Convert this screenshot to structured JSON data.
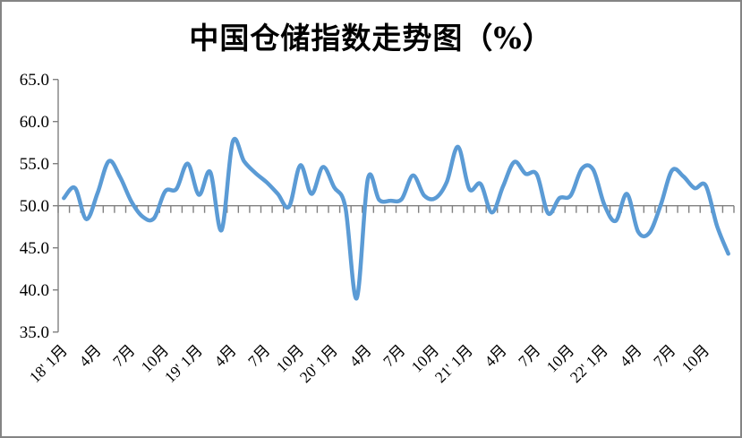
{
  "chart_data": {
    "type": "line",
    "title": "中国仓储指数走势图（%）",
    "xlabel": "",
    "ylabel": "",
    "ylim": [
      35.0,
      65.0
    ],
    "ytick_step": 5.0,
    "y_tick_labels": [
      "65.0",
      "60.0",
      "55.0",
      "50.0",
      "45.0",
      "40.0",
      "35.0"
    ],
    "x_axis_crosses_at": 50.0,
    "grid": false,
    "legend": "none",
    "line_color": "#5b9bd5",
    "axis_color": "#808080",
    "x_tick_label_rotation_deg": 45,
    "x_tick_positions": [
      0,
      3,
      6,
      9,
      12,
      15,
      18,
      21,
      24,
      27,
      30,
      33,
      36,
      39,
      42,
      45,
      48,
      51,
      54,
      57
    ],
    "x_tick_labels": [
      "18' 1月",
      "4月",
      "7月",
      "10月",
      "19' 1月",
      "4月",
      "7月",
      "10月",
      "20' 1月",
      "4月",
      "7月",
      "10月",
      "21' 1月",
      "4月",
      "7月",
      "10月",
      "22' 1月",
      "4月",
      "7月",
      "10月"
    ],
    "categories": [
      "2018-01",
      "2018-02",
      "2018-03",
      "2018-04",
      "2018-05",
      "2018-06",
      "2018-07",
      "2018-08",
      "2018-09",
      "2018-10",
      "2018-11",
      "2018-12",
      "2019-01",
      "2019-02",
      "2019-03",
      "2019-04",
      "2019-05",
      "2019-06",
      "2019-07",
      "2019-08",
      "2019-09",
      "2019-10",
      "2019-11",
      "2019-12",
      "2020-01",
      "2020-02",
      "2020-03",
      "2020-04",
      "2020-05",
      "2020-06",
      "2020-07",
      "2020-08",
      "2020-09",
      "2020-10",
      "2020-11",
      "2020-12",
      "2021-01",
      "2021-02",
      "2021-03",
      "2021-04",
      "2021-05",
      "2021-06",
      "2021-07",
      "2021-08",
      "2021-09",
      "2021-10",
      "2021-11",
      "2021-12",
      "2022-01",
      "2022-02",
      "2022-03",
      "2022-04",
      "2022-05",
      "2022-06",
      "2022-07",
      "2022-08",
      "2022-09",
      "2022-10",
      "2022-11",
      "2022-12"
    ],
    "series": [
      {
        "name": "中国仓储指数",
        "smooth": true,
        "values": [
          50.9,
          52.1,
          48.4,
          51.5,
          55.3,
          53.4,
          50.5,
          48.7,
          48.5,
          51.7,
          52.0,
          55.0,
          51.3,
          54.0,
          47.1,
          57.6,
          55.3,
          53.9,
          52.8,
          51.4,
          49.9,
          54.8,
          51.4,
          54.6,
          52.2,
          49.8,
          39.0,
          53.2,
          50.7,
          50.6,
          50.8,
          53.6,
          51.2,
          50.9,
          52.8,
          57.0,
          52.0,
          52.6,
          49.2,
          52.3,
          55.2,
          53.8,
          53.7,
          49.1,
          50.9,
          51.2,
          54.4,
          54.3,
          50.1,
          48.2,
          51.4,
          46.9,
          46.8,
          50.1,
          54.2,
          53.5,
          52.1,
          52.4,
          47.6,
          44.3
        ]
      }
    ]
  }
}
